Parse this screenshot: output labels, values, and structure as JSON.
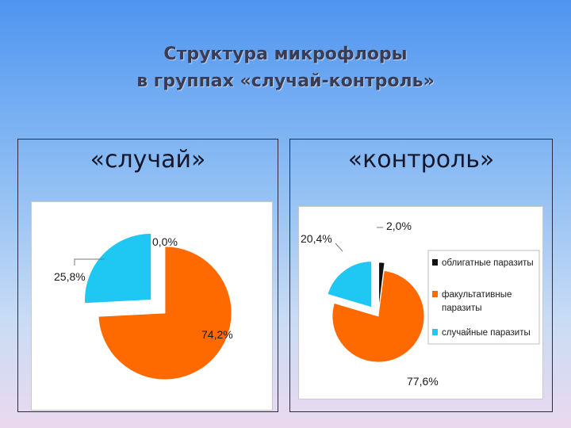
{
  "slide": {
    "title_line1": "Структура микрофлоры",
    "title_line2": "в группах «случай-контроль»"
  },
  "panels": {
    "left_heading": "«случай»",
    "right_heading": "«контроль»"
  },
  "colors": {
    "obligate": "#111111",
    "facultative": "#ff6a00",
    "random": "#1ec8f2"
  },
  "chart_data": [
    {
      "type": "pie",
      "title": "",
      "categories": [
        "облигатные паразиты",
        "факультативные паразиты",
        "случайные паразиты"
      ],
      "values": [
        0.0,
        74.2,
        25.8
      ],
      "labels": [
        "0,0%",
        "74,2%",
        "25,8%"
      ],
      "exploded": true,
      "legend": "none"
    },
    {
      "type": "pie",
      "title": "",
      "categories": [
        "облигатные паразиты",
        "факультативные паразиты",
        "случайные паразиты"
      ],
      "values": [
        2.0,
        77.6,
        20.4
      ],
      "labels": [
        "2,0%",
        "77,6%",
        "20,4%"
      ],
      "exploded": true,
      "legend": "right",
      "legend_entries": [
        {
          "label_lines": [
            "облигатные паразиты"
          ]
        },
        {
          "label_lines": [
            "факультативные",
            "паразиты"
          ]
        },
        {
          "label_lines": [
            "случайные паразиты"
          ]
        }
      ]
    }
  ]
}
